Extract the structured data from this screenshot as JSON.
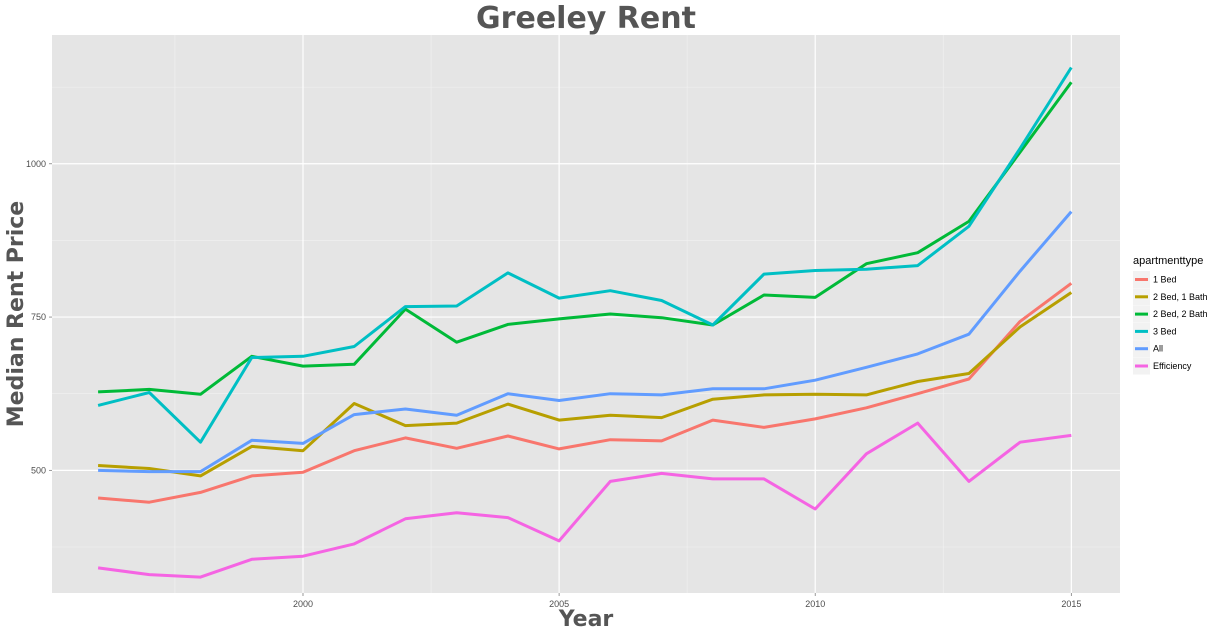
{
  "chart_data": {
    "type": "line",
    "title": "Greeley Rent",
    "xlabel": "Year",
    "ylabel": "Median Rent Price",
    "xlim": [
      1995.1,
      2015.95
    ],
    "ylim": [
      300,
      1210
    ],
    "x_ticks": [
      2000,
      2005,
      2010,
      2015
    ],
    "y_ticks": [
      500,
      750,
      1000
    ],
    "x": [
      1996,
      1997,
      1998,
      1999,
      2000,
      2001,
      2002,
      2003,
      2004,
      2005,
      2006,
      2007,
      2008,
      2009,
      2010,
      2011,
      2012,
      2013,
      2014,
      2015
    ],
    "grid": true,
    "legend": {
      "title": "apartmenttype",
      "placement": "right"
    },
    "series": [
      {
        "name": "1 Bed",
        "color": "#F8766D",
        "values": [
          455,
          448,
          464,
          491,
          497,
          532,
          553,
          536,
          556,
          535,
          550,
          548,
          582,
          570,
          584,
          602,
          625,
          649,
          743,
          805
        ]
      },
      {
        "name": "2 Bed, 1 Bath",
        "color": "#B79F00",
        "values": [
          508,
          503,
          491,
          539,
          532,
          609,
          573,
          577,
          608,
          582,
          590,
          586,
          616,
          623,
          624,
          623,
          645,
          658,
          734,
          790
        ]
      },
      {
        "name": "2 Bed, 2 Bath",
        "color": "#00BA38",
        "values": [
          628,
          632,
          624,
          686,
          670,
          673,
          763,
          709,
          738,
          747,
          755,
          749,
          737,
          786,
          782,
          837,
          855,
          906,
          1019,
          1133
        ]
      },
      {
        "name": "3 Bed",
        "color": "#00BFC4",
        "values": [
          606,
          627,
          546,
          684,
          686,
          702,
          767,
          768,
          822,
          781,
          793,
          777,
          737,
          820,
          826,
          828,
          834,
          898,
          1025,
          1157
        ]
      },
      {
        "name": "All",
        "color": "#619CFF",
        "values": [
          500,
          498,
          498,
          549,
          544,
          591,
          600,
          590,
          625,
          614,
          625,
          623,
          633,
          633,
          647,
          668,
          690,
          722,
          825,
          922
        ]
      },
      {
        "name": "Efficiency",
        "color": "#F564E3",
        "values": [
          341,
          330,
          326,
          355,
          360,
          380,
          421,
          431,
          423,
          385,
          482,
          495,
          486,
          486,
          437,
          527,
          577,
          482,
          546,
          557
        ]
      }
    ]
  }
}
